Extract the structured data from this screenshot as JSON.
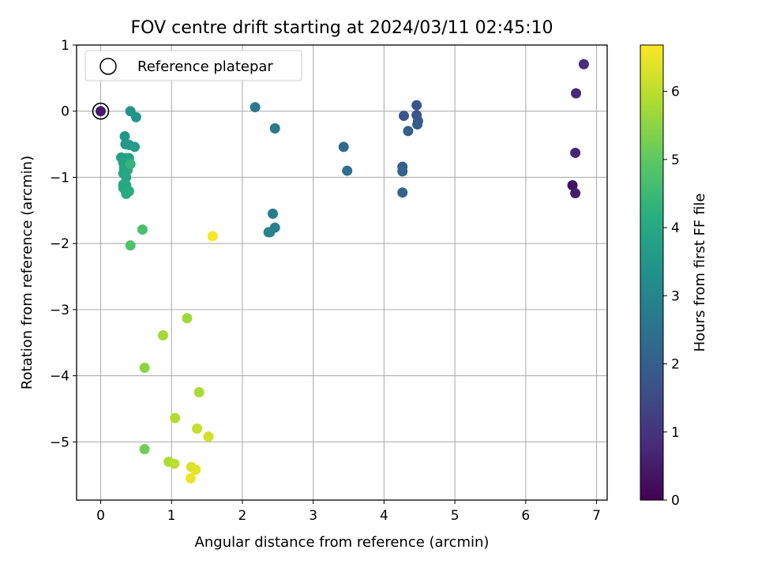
{
  "chart_data": {
    "type": "scatter",
    "title": "FOV centre drift starting at 2024/03/11 02:45:10",
    "xlabel": "Angular distance from reference (arcmin)",
    "ylabel": "Rotation from reference (arcmin)",
    "xlim": [
      -0.34,
      7.15
    ],
    "ylim": [
      -5.88,
      1.0
    ],
    "xticks": [
      0,
      1,
      2,
      3,
      4,
      5,
      6,
      7
    ],
    "yticks": [
      1,
      0,
      -1,
      -2,
      -3,
      -4,
      -5
    ],
    "grid": true,
    "legend": {
      "placement": "top-left",
      "entries": [
        "Reference platepar"
      ]
    },
    "colorbar": {
      "label": "Hours from first FF file",
      "colormap": "viridis",
      "range": [
        0,
        6.68
      ],
      "ticks": [
        0,
        1,
        2,
        3,
        4,
        5,
        6
      ]
    },
    "reference_point": {
      "x": 0,
      "y": 0
    },
    "points": [
      {
        "x": 0.0,
        "y": 0.0,
        "c": 0.5
      },
      {
        "x": 6.82,
        "y": 0.71,
        "c": 0.9
      },
      {
        "x": 6.71,
        "y": 0.27,
        "c": 0.8
      },
      {
        "x": 6.7,
        "y": -0.63,
        "c": 0.7
      },
      {
        "x": 6.66,
        "y": -1.12,
        "c": 0.3
      },
      {
        "x": 6.7,
        "y": -1.24,
        "c": 0.55
      },
      {
        "x": 4.46,
        "y": 0.09,
        "c": 1.7
      },
      {
        "x": 4.28,
        "y": -0.07,
        "c": 1.75
      },
      {
        "x": 4.46,
        "y": -0.06,
        "c": 1.8
      },
      {
        "x": 4.48,
        "y": -0.15,
        "c": 1.85
      },
      {
        "x": 4.47,
        "y": -0.2,
        "c": 1.9
      },
      {
        "x": 4.34,
        "y": -0.3,
        "c": 2.0
      },
      {
        "x": 4.26,
        "y": -0.84,
        "c": 2.05
      },
      {
        "x": 4.26,
        "y": -0.91,
        "c": 2.1
      },
      {
        "x": 4.26,
        "y": -1.23,
        "c": 2.15
      },
      {
        "x": 3.43,
        "y": -0.54,
        "c": 2.3
      },
      {
        "x": 3.48,
        "y": -0.9,
        "c": 2.4
      },
      {
        "x": 2.18,
        "y": 0.06,
        "c": 2.6
      },
      {
        "x": 2.46,
        "y": -0.26,
        "c": 2.7
      },
      {
        "x": 2.43,
        "y": -1.55,
        "c": 2.8
      },
      {
        "x": 2.46,
        "y": -1.76,
        "c": 2.85
      },
      {
        "x": 2.37,
        "y": -1.83,
        "c": 2.9
      },
      {
        "x": 2.39,
        "y": -1.83,
        "c": 2.95
      },
      {
        "x": 0.42,
        "y": 0.0,
        "c": 3.4
      },
      {
        "x": 0.5,
        "y": -0.09,
        "c": 3.45
      },
      {
        "x": 0.34,
        "y": -0.38,
        "c": 3.5
      },
      {
        "x": 0.35,
        "y": -0.5,
        "c": 3.55
      },
      {
        "x": 0.4,
        "y": -0.51,
        "c": 3.6
      },
      {
        "x": 0.48,
        "y": -0.54,
        "c": 3.65
      },
      {
        "x": 0.29,
        "y": -0.7,
        "c": 3.7
      },
      {
        "x": 0.36,
        "y": -0.71,
        "c": 3.75
      },
      {
        "x": 0.4,
        "y": -0.71,
        "c": 3.8
      },
      {
        "x": 0.32,
        "y": -0.78,
        "c": 3.85
      },
      {
        "x": 0.33,
        "y": -0.86,
        "c": 3.9
      },
      {
        "x": 0.38,
        "y": -0.89,
        "c": 3.9
      },
      {
        "x": 0.32,
        "y": -0.94,
        "c": 3.95
      },
      {
        "x": 0.36,
        "y": -1.0,
        "c": 3.95
      },
      {
        "x": 0.32,
        "y": -1.11,
        "c": 4.0
      },
      {
        "x": 0.36,
        "y": -1.12,
        "c": 4.0
      },
      {
        "x": 0.32,
        "y": -1.16,
        "c": 4.05
      },
      {
        "x": 0.35,
        "y": -1.2,
        "c": 4.05
      },
      {
        "x": 0.4,
        "y": -1.21,
        "c": 4.1
      },
      {
        "x": 0.36,
        "y": -1.25,
        "c": 4.1
      },
      {
        "x": 0.42,
        "y": -0.8,
        "c": 4.4
      },
      {
        "x": 0.59,
        "y": -1.79,
        "c": 4.7
      },
      {
        "x": 0.42,
        "y": -2.03,
        "c": 4.8
      },
      {
        "x": 0.62,
        "y": -5.11,
        "c": 5.2
      },
      {
        "x": 0.62,
        "y": -3.88,
        "c": 5.5
      },
      {
        "x": 1.22,
        "y": -3.13,
        "c": 5.7
      },
      {
        "x": 0.88,
        "y": -3.39,
        "c": 5.75
      },
      {
        "x": 1.39,
        "y": -4.25,
        "c": 5.8
      },
      {
        "x": 0.96,
        "y": -5.3,
        "c": 5.85
      },
      {
        "x": 1.05,
        "y": -4.64,
        "c": 5.9
      },
      {
        "x": 1.04,
        "y": -5.33,
        "c": 6.0
      },
      {
        "x": 1.36,
        "y": -4.8,
        "c": 6.1
      },
      {
        "x": 1.52,
        "y": -4.92,
        "c": 6.2
      },
      {
        "x": 1.28,
        "y": -5.38,
        "c": 6.3
      },
      {
        "x": 1.34,
        "y": -5.42,
        "c": 6.4
      },
      {
        "x": 1.27,
        "y": -5.55,
        "c": 6.5
      },
      {
        "x": 1.58,
        "y": -1.89,
        "c": 6.6
      }
    ]
  }
}
